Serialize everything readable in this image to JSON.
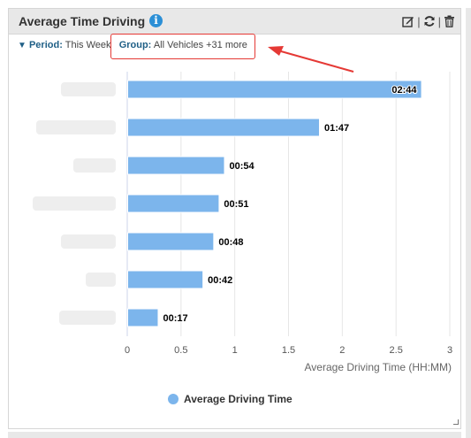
{
  "widget": {
    "title": "Average Time Driving",
    "period_label": "Period:",
    "period_value": "This Week",
    "group_label": "Group:",
    "group_value": "All Vehicles +31 more",
    "tools": [
      "edit-icon",
      "refresh-icon",
      "trash-icon"
    ]
  },
  "chart_data": {
    "type": "bar",
    "orientation": "horizontal",
    "categories": [
      "",
      "",
      "",
      "",
      "",
      "",
      ""
    ],
    "values": [
      2.7333,
      1.7833,
      0.9,
      0.85,
      0.8,
      0.7,
      0.2833
    ],
    "data_labels": [
      "02:44",
      "01:47",
      "00:54",
      "00:51",
      "00:48",
      "00:42",
      "00:17"
    ],
    "xlim": [
      0,
      3
    ],
    "x_ticks": [
      "0",
      "0.5",
      "1",
      "1.5",
      "2",
      "2.5",
      "3"
    ],
    "xlabel": "Average Driving Time (HH:MM)",
    "ylabel": "",
    "grid": true,
    "legend_position": "bottom-center",
    "series": [
      {
        "name": "Average Driving Time",
        "color": "#7cb5ec"
      }
    ]
  },
  "colors": {
    "bar": "#7cb5ec",
    "header_bg": "#e8e8e8",
    "accent_text": "#1f5f86",
    "highlight": "#e53935"
  }
}
